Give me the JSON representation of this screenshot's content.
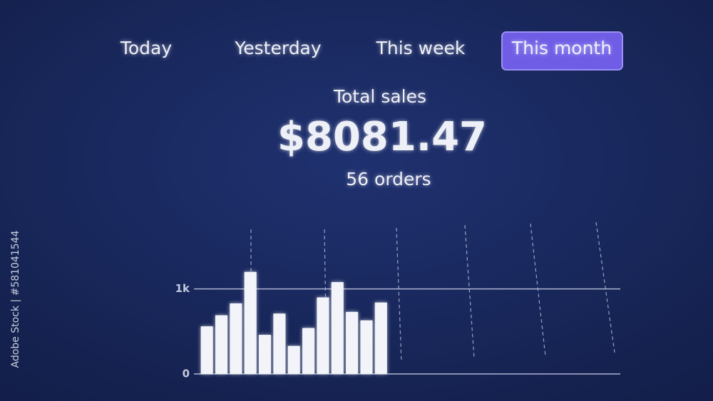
{
  "tabs": [
    "Today",
    "Yesterday",
    "This week",
    "This month"
  ],
  "active_tab": 3,
  "summary": {
    "label": "Total sales",
    "total": "$8081.47",
    "orders": "56 orders"
  },
  "watermark": "Adobe Stock | #581041544",
  "chart_data": {
    "type": "bar",
    "values": [
      560,
      690,
      830,
      1200,
      460,
      710,
      330,
      540,
      900,
      1080,
      730,
      630,
      840
    ],
    "color": "#f2f4fa",
    "ylim": [
      0,
      1700
    ],
    "yticks": [
      0,
      {
        "value": 1000,
        "label": "1k"
      }
    ],
    "grid": true
  }
}
